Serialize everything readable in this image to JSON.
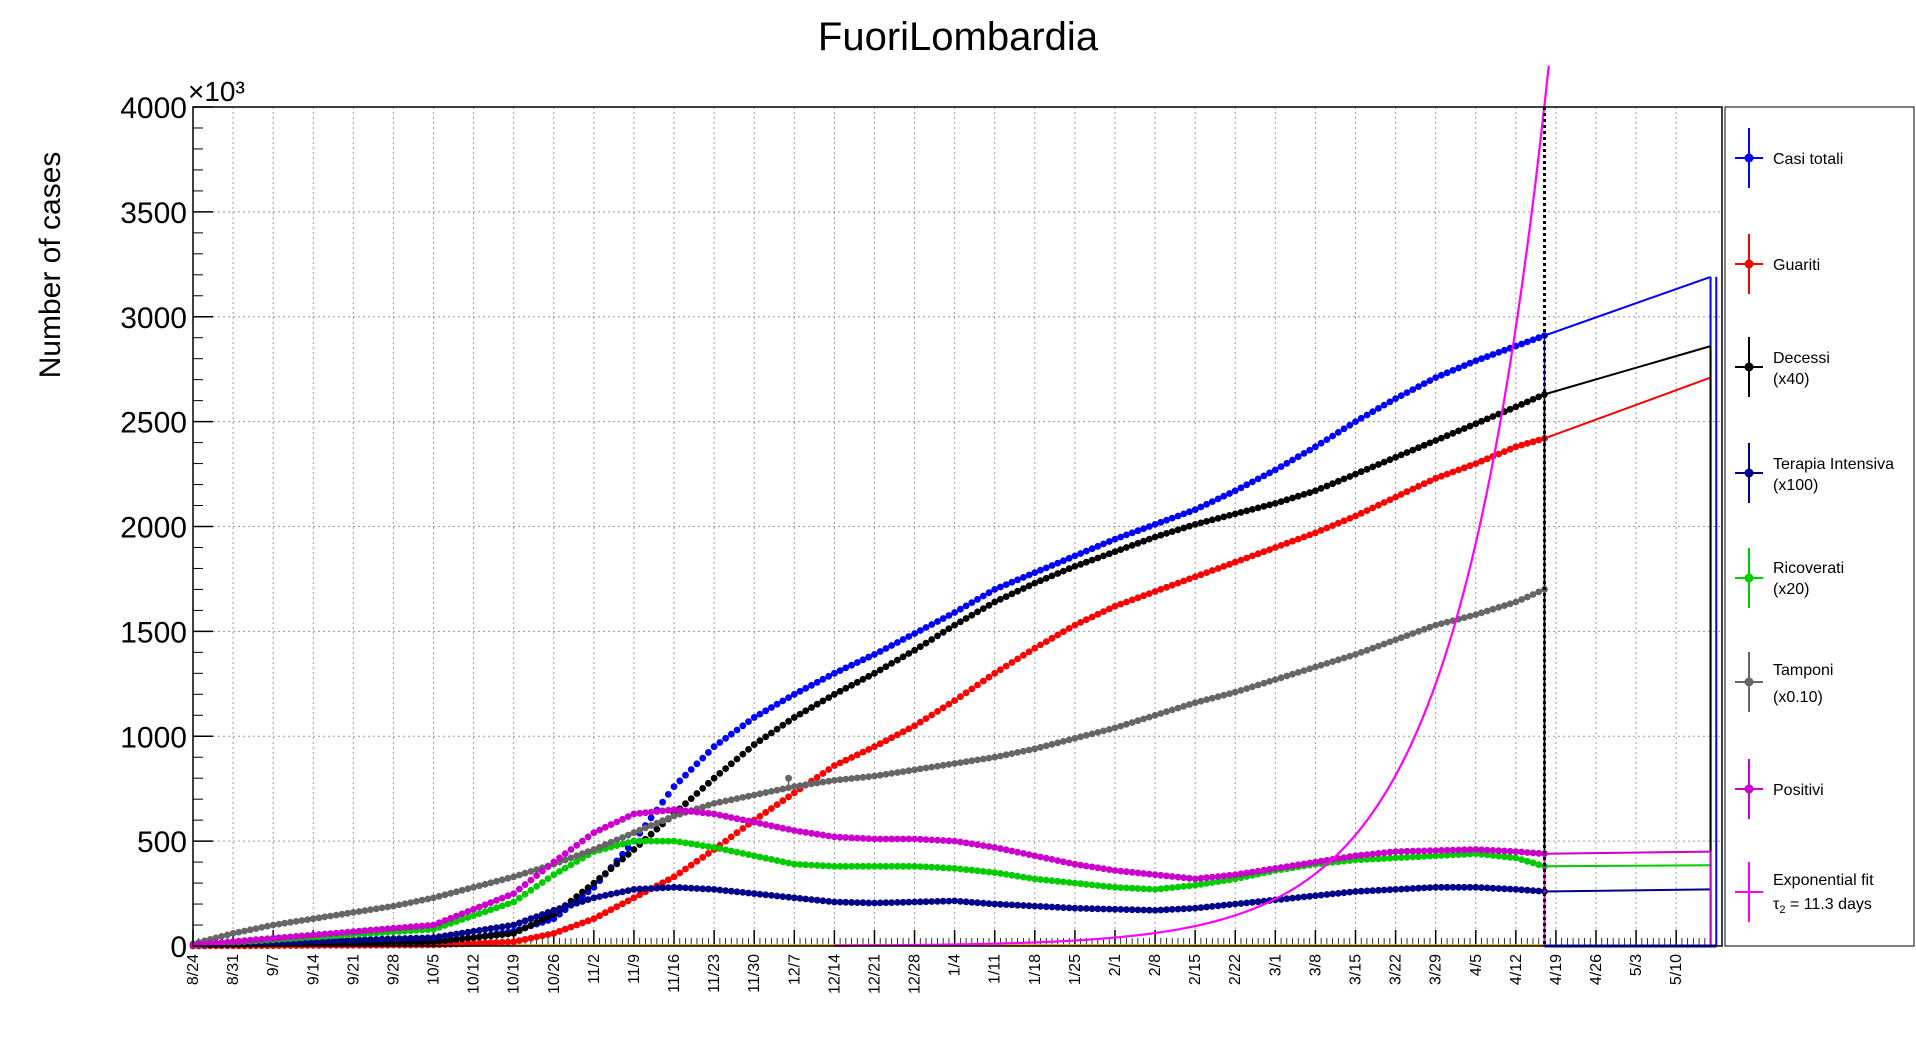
{
  "chart_data": {
    "type": "line",
    "title": "FuoriLombardia",
    "ylabel": "Number of cases",
    "y_multiplier_label": "×10³",
    "x_unit": "day index since 8/24",
    "x_range_days": [
      0,
      267
    ],
    "ylim": [
      0,
      4000
    ],
    "y_tick_labels": [
      "0",
      "500",
      "1000",
      "1500",
      "2000",
      "2500",
      "3000",
      "3500",
      "4000"
    ],
    "x_tick_labels": [
      "8/24",
      "8/31",
      "9/7",
      "9/14",
      "9/21",
      "9/28",
      "10/5",
      "10/12",
      "10/19",
      "10/26",
      "11/2",
      "11/9",
      "11/16",
      "11/23",
      "11/30",
      "12/7",
      "12/14",
      "12/21",
      "12/28",
      "1/4",
      "1/11",
      "1/18",
      "1/25",
      "2/1",
      "2/8",
      "2/15",
      "2/22",
      "3/1",
      "3/8",
      "3/15",
      "3/22",
      "3/29",
      "4/5",
      "4/12",
      "4/19",
      "4/26",
      "5/3",
      "5/10"
    ],
    "grid": true,
    "legend_position": "right",
    "data_end_day": 236,
    "projection_end_day": 265,
    "series": [
      {
        "name": "Casi totali",
        "color": "#0000ff",
        "x": [
          0,
          21,
          42,
          49,
          56,
          63,
          70,
          77,
          84,
          91,
          98,
          105,
          112,
          119,
          126,
          133,
          140,
          147,
          154,
          161,
          168,
          175,
          182,
          189,
          196,
          203,
          210,
          217,
          224,
          231,
          236
        ],
        "y": [
          5,
          10,
          20,
          40,
          70,
          130,
          280,
          500,
          760,
          950,
          1090,
          1200,
          1300,
          1390,
          1490,
          1590,
          1700,
          1780,
          1860,
          1940,
          2010,
          2080,
          2170,
          2270,
          2380,
          2500,
          2610,
          2710,
          2790,
          2860,
          2910
        ],
        "projection": [
          [
            236,
            2910
          ],
          [
            265,
            3190
          ]
        ]
      },
      {
        "name": "Guariti",
        "color": "#ff0000",
        "x": [
          0,
          42,
          56,
          63,
          70,
          77,
          84,
          91,
          98,
          105,
          112,
          119,
          126,
          133,
          140,
          147,
          154,
          161,
          168,
          175,
          182,
          189,
          196,
          203,
          210,
          217,
          224,
          231,
          236
        ],
        "y": [
          0,
          5,
          20,
          60,
          130,
          230,
          330,
          460,
          600,
          730,
          860,
          950,
          1050,
          1170,
          1300,
          1420,
          1530,
          1620,
          1690,
          1760,
          1830,
          1900,
          1970,
          2050,
          2140,
          2230,
          2300,
          2380,
          2420
        ],
        "projection": [
          [
            236,
            2420
          ],
          [
            265,
            2710
          ]
        ]
      },
      {
        "name": "Decessi",
        "multiplier": "(x40)",
        "color": "#000000",
        "x": [
          0,
          42,
          56,
          63,
          70,
          77,
          84,
          91,
          98,
          105,
          112,
          119,
          126,
          133,
          140,
          147,
          154,
          161,
          168,
          175,
          182,
          189,
          196,
          203,
          210,
          217,
          224,
          231,
          236
        ],
        "y": [
          5,
          20,
          60,
          150,
          300,
          460,
          630,
          800,
          960,
          1090,
          1200,
          1300,
          1410,
          1530,
          1640,
          1730,
          1810,
          1880,
          1950,
          2010,
          2060,
          2110,
          2170,
          2250,
          2330,
          2410,
          2490,
          2570,
          2630
        ],
        "projection": [
          [
            236,
            2630
          ],
          [
            265,
            2860
          ]
        ]
      },
      {
        "name": "Terapia Intensiva",
        "multiplier": "(x100)",
        "color": "#00008b",
        "x": [
          0,
          42,
          56,
          63,
          70,
          77,
          84,
          91,
          98,
          105,
          112,
          119,
          126,
          133,
          140,
          147,
          154,
          161,
          168,
          175,
          182,
          189,
          196,
          203,
          210,
          217,
          224,
          231,
          236
        ],
        "y": [
          5,
          40,
          100,
          170,
          230,
          270,
          280,
          270,
          250,
          230,
          210,
          205,
          210,
          215,
          200,
          190,
          180,
          175,
          170,
          180,
          200,
          220,
          240,
          260,
          270,
          280,
          280,
          270,
          260
        ],
        "projection": [
          [
            236,
            260
          ],
          [
            265,
            270
          ]
        ]
      },
      {
        "name": "Ricoverati",
        "multiplier": "(x20)",
        "color": "#00cc00",
        "x": [
          0,
          42,
          56,
          63,
          70,
          77,
          84,
          91,
          98,
          105,
          112,
          119,
          126,
          133,
          140,
          147,
          154,
          161,
          168,
          175,
          182,
          189,
          196,
          203,
          210,
          217,
          224,
          231,
          236
        ],
        "y": [
          5,
          80,
          210,
          340,
          450,
          500,
          500,
          470,
          430,
          390,
          380,
          380,
          380,
          370,
          350,
          320,
          300,
          280,
          270,
          290,
          320,
          360,
          390,
          410,
          420,
          430,
          440,
          420,
          380
        ],
        "projection": [
          [
            236,
            380
          ],
          [
            265,
            385
          ]
        ]
      },
      {
        "name": "Tamponi",
        "multiplier": "(x0.10)",
        "color": "#666666",
        "x": [
          0,
          7,
          14,
          21,
          28,
          35,
          42,
          49,
          56,
          63,
          70,
          77,
          84,
          91,
          98,
          105,
          112,
          119,
          126,
          133,
          140,
          147,
          154,
          161,
          168,
          175,
          182,
          189,
          196,
          203,
          210,
          217,
          224,
          231,
          236
        ],
        "y": [
          10,
          60,
          100,
          130,
          160,
          190,
          230,
          280,
          330,
          390,
          460,
          540,
          620,
          680,
          720,
          760,
          790,
          810,
          840,
          870,
          900,
          940,
          990,
          1040,
          1100,
          1160,
          1210,
          1270,
          1330,
          1390,
          1460,
          1530,
          1580,
          1640,
          1700
        ],
        "outlier": [
          104,
          800
        ]
      },
      {
        "name": "Positivi",
        "color": "#cc00cc",
        "x": [
          0,
          42,
          56,
          63,
          70,
          77,
          84,
          91,
          98,
          105,
          112,
          119,
          126,
          133,
          140,
          147,
          154,
          161,
          168,
          175,
          182,
          189,
          196,
          203,
          210,
          217,
          224,
          231,
          236
        ],
        "y": [
          5,
          100,
          250,
          400,
          540,
          630,
          650,
          630,
          590,
          550,
          520,
          510,
          510,
          500,
          470,
          430,
          390,
          360,
          340,
          320,
          340,
          370,
          400,
          430,
          450,
          455,
          460,
          450,
          440
        ],
        "projection": [
          [
            236,
            440
          ],
          [
            265,
            450
          ]
        ]
      },
      {
        "name": "Exponential fit",
        "fit_label": "τ₂ = 11.3 days",
        "color": "#ff00ff",
        "tau2_days": 11.3,
        "ref_day": 231,
        "ref_value": 2950,
        "exp_range_days": [
          112,
          238
        ]
      }
    ]
  },
  "legend": {
    "casi_totali": "Casi totali",
    "guariti": "Guariti",
    "decessi": "Decessi",
    "decessi_mult": "(x40)",
    "terapia": "Terapia Intensiva",
    "terapia_mult": "(x100)",
    "ricoverati": "Ricoverati",
    "ricoverati_mult": "(x20)",
    "tamponi": "Tamponi",
    "tamponi_mult": "(x0.10)",
    "positivi": "Positivi",
    "fit": "Exponential fit",
    "fit_tau_symbol": "τ",
    "fit_tau_sub": "2",
    "fit_tau_rest": " = 11.3 days"
  }
}
